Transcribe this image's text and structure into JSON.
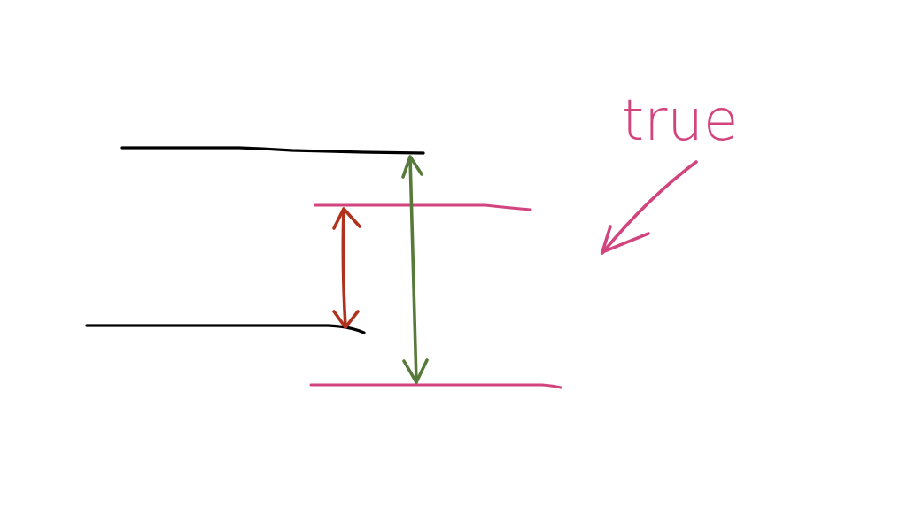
{
  "annotation": {
    "text": "true"
  },
  "colors": {
    "background": "#ffffff",
    "black_lines": "#000000",
    "pink_lines": "#d2447e",
    "red_arrow": "#b0321c",
    "green_arrow": "#577a3a",
    "annotation": "#d2447e"
  },
  "icons": {
    "pointer_arrow": "arrow-down-left-icon"
  }
}
